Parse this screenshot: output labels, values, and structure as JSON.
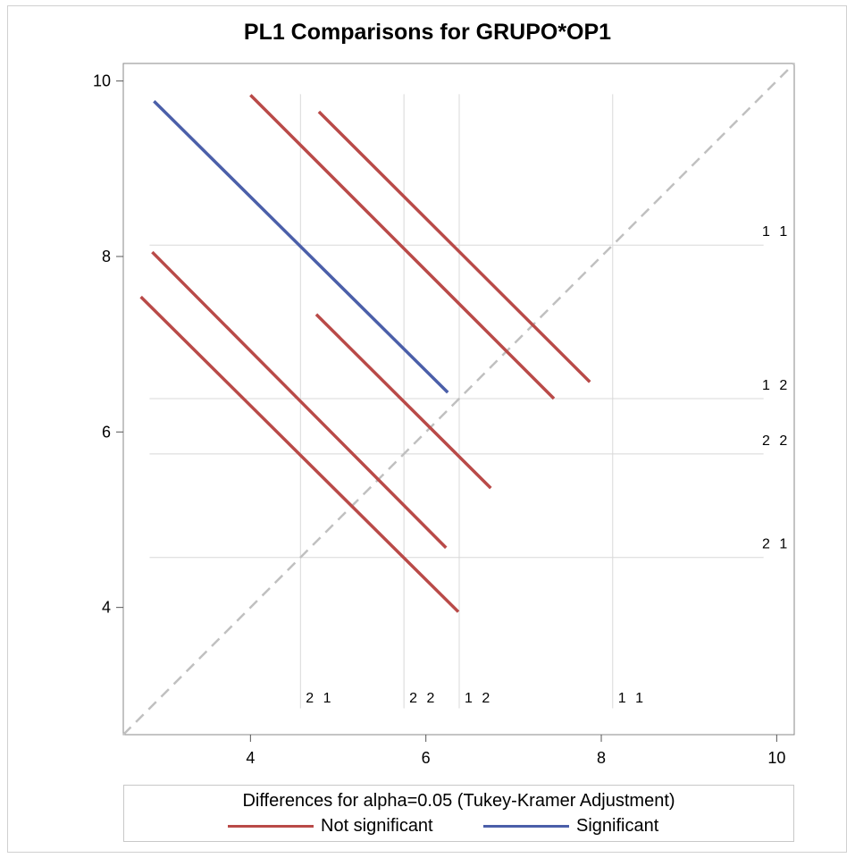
{
  "chart_data": {
    "type": "line",
    "title": "PL1 Comparisons for GRUPO*OP1",
    "xlabel": "",
    "ylabel": "",
    "xlim": [
      2.55,
      10.2
    ],
    "ylim": [
      2.55,
      10.2
    ],
    "x_ticks": [
      "4",
      "6",
      "8",
      "10"
    ],
    "y_ticks": [
      "4",
      "6",
      "8",
      "10"
    ],
    "reference_lines": [
      {
        "label": "1 1",
        "value": 8.13
      },
      {
        "label": "1 2",
        "value": 6.38
      },
      {
        "label": "2 2",
        "value": 5.75
      },
      {
        "label": "2 1",
        "value": 4.57
      }
    ],
    "diagonal": "dashed",
    "series": [
      {
        "name": "Not significant",
        "color": "#b94a48",
        "segments": [
          [
            [
              4.0,
              9.84
            ],
            [
              7.46,
              6.38
            ]
          ],
          [
            [
              4.78,
              9.65
            ],
            [
              7.87,
              6.57
            ]
          ],
          [
            [
              2.88,
              8.05
            ],
            [
              6.23,
              4.68
            ]
          ],
          [
            [
              2.75,
              7.54
            ],
            [
              6.37,
              3.95
            ]
          ],
          [
            [
              4.75,
              7.34
            ],
            [
              6.74,
              5.36
            ]
          ]
        ]
      },
      {
        "name": "Significant",
        "color": "#4b5fa9",
        "segments": [
          [
            [
              2.9,
              9.77
            ],
            [
              6.25,
              6.45
            ]
          ]
        ]
      }
    ],
    "legend": {
      "title": "Differences for alpha=0.05 (Tukey-Kramer Adjustment)",
      "position": "bottom",
      "items": [
        "Not significant",
        "Significant"
      ]
    },
    "grid": false
  }
}
